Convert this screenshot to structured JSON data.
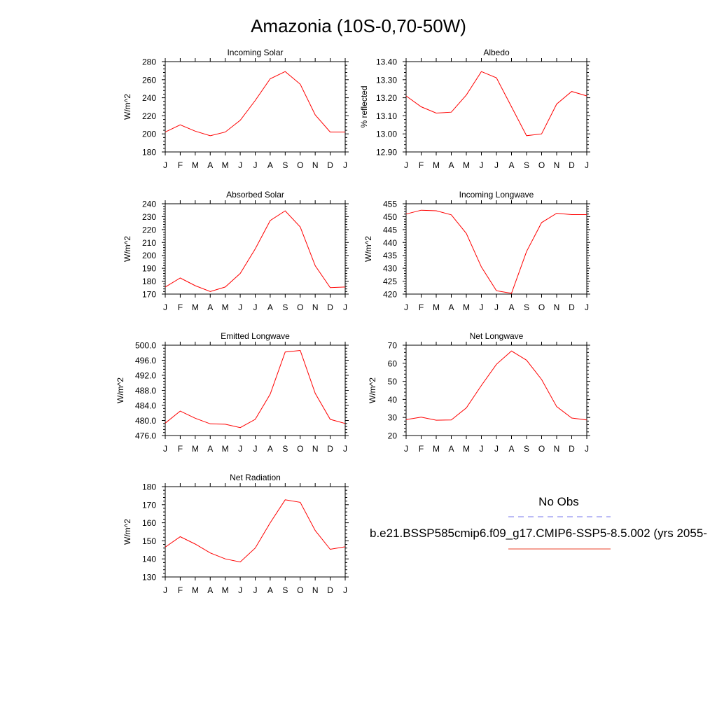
{
  "figure": {
    "title": "Amazonia (10S-0,70-50W)"
  },
  "legend": {
    "obs_label": "No Obs",
    "obs_color": "#7777ee",
    "model_label": "b.e21.BSSP585cmip6.f09_g17.CMIP6-SSP5-8.5.002 (yrs 2055-",
    "model_color": "#e8402a"
  },
  "colors": {
    "line": "#ff0000",
    "axis": "#000000"
  },
  "chart_data": [
    {
      "type": "line",
      "title": "Incoming Solar",
      "ylabel": "W/m^2",
      "categories": [
        "J",
        "F",
        "M",
        "A",
        "M",
        "J",
        "J",
        "A",
        "S",
        "O",
        "N",
        "D",
        "J"
      ],
      "ylim": [
        180,
        280
      ],
      "yticks": [
        "280",
        "260",
        "240",
        "220",
        "200",
        "180"
      ],
      "series": [
        {
          "values": [
            202,
            210,
            203,
            198,
            202,
            215,
            237,
            261,
            269,
            255,
            221,
            202,
            202
          ]
        }
      ]
    },
    {
      "type": "line",
      "title": "Albedo",
      "ylabel": "% reflected",
      "categories": [
        "J",
        "F",
        "M",
        "A",
        "M",
        "J",
        "J",
        "A",
        "S",
        "O",
        "N",
        "D",
        "J"
      ],
      "ylim": [
        12.9,
        13.4
      ],
      "yticks": [
        "13.40",
        "13.30",
        "13.20",
        "13.10",
        "13.00",
        "12.90"
      ],
      "series": [
        {
          "values": [
            13.21,
            13.15,
            13.115,
            13.12,
            13.215,
            13.345,
            13.31,
            13.15,
            12.99,
            13.0,
            13.165,
            13.235,
            13.21
          ]
        }
      ]
    },
    {
      "type": "line",
      "title": "Absorbed Solar",
      "ylabel": "W/m^2",
      "categories": [
        "J",
        "F",
        "M",
        "A",
        "M",
        "J",
        "J",
        "A",
        "S",
        "O",
        "N",
        "D",
        "J"
      ],
      "ylim": [
        170,
        240
      ],
      "yticks": [
        "240",
        "230",
        "220",
        "210",
        "200",
        "190",
        "180",
        "170"
      ],
      "series": [
        {
          "values": [
            175.5,
            182.5,
            176.5,
            172,
            175.5,
            186,
            205,
            227,
            234.5,
            222,
            192,
            175,
            175.5
          ]
        }
      ]
    },
    {
      "type": "line",
      "title": "Incoming Longwave",
      "ylabel": "W/m^2",
      "categories": [
        "J",
        "F",
        "M",
        "A",
        "M",
        "J",
        "J",
        "A",
        "S",
        "O",
        "N",
        "D",
        "J"
      ],
      "ylim": [
        420,
        455
      ],
      "yticks": [
        "455",
        "450",
        "445",
        "440",
        "435",
        "430",
        "425",
        "420"
      ],
      "series": [
        {
          "values": [
            451,
            452.5,
            452.3,
            450.7,
            443.5,
            430.5,
            421.3,
            420.3,
            436.5,
            447.7,
            451.3,
            450.8,
            450.8
          ]
        }
      ]
    },
    {
      "type": "line",
      "title": "Emitted Longwave",
      "ylabel": "W/m^2",
      "categories": [
        "J",
        "F",
        "M",
        "A",
        "M",
        "J",
        "J",
        "A",
        "S",
        "O",
        "N",
        "D",
        "J"
      ],
      "ylim": [
        476,
        500
      ],
      "yticks": [
        "500.0",
        "496.0",
        "492.0",
        "488.0",
        "484.0",
        "480.0",
        "476.0"
      ],
      "series": [
        {
          "values": [
            479.3,
            482.5,
            480.6,
            479.1,
            479.0,
            478.1,
            480.3,
            487.0,
            498.2,
            498.6,
            487.2,
            480.3,
            479.2
          ]
        }
      ]
    },
    {
      "type": "line",
      "title": "Net Longwave",
      "ylabel": "W/m^2",
      "categories": [
        "J",
        "F",
        "M",
        "A",
        "M",
        "J",
        "J",
        "A",
        "S",
        "O",
        "N",
        "D",
        "J"
      ],
      "ylim": [
        20,
        70
      ],
      "yticks": [
        "70",
        "60",
        "50",
        "40",
        "30",
        "20"
      ],
      "series": [
        {
          "values": [
            28.8,
            30.2,
            28.5,
            28.6,
            35.3,
            47.7,
            59.4,
            66.8,
            61.7,
            51.0,
            36.0,
            29.7,
            28.6
          ]
        }
      ]
    },
    {
      "type": "line",
      "title": "Net Radiation",
      "ylabel": "W/m^2",
      "categories": [
        "J",
        "F",
        "M",
        "A",
        "M",
        "J",
        "J",
        "A",
        "S",
        "O",
        "N",
        "D",
        "J"
      ],
      "ylim": [
        130,
        180
      ],
      "yticks": [
        "180",
        "170",
        "160",
        "150",
        "140",
        "130"
      ],
      "series": [
        {
          "values": [
            146.5,
            152.3,
            148.2,
            143.3,
            140.0,
            138.3,
            146.0,
            160.0,
            172.7,
            171.3,
            155.7,
            145.3,
            146.7
          ]
        }
      ]
    }
  ]
}
